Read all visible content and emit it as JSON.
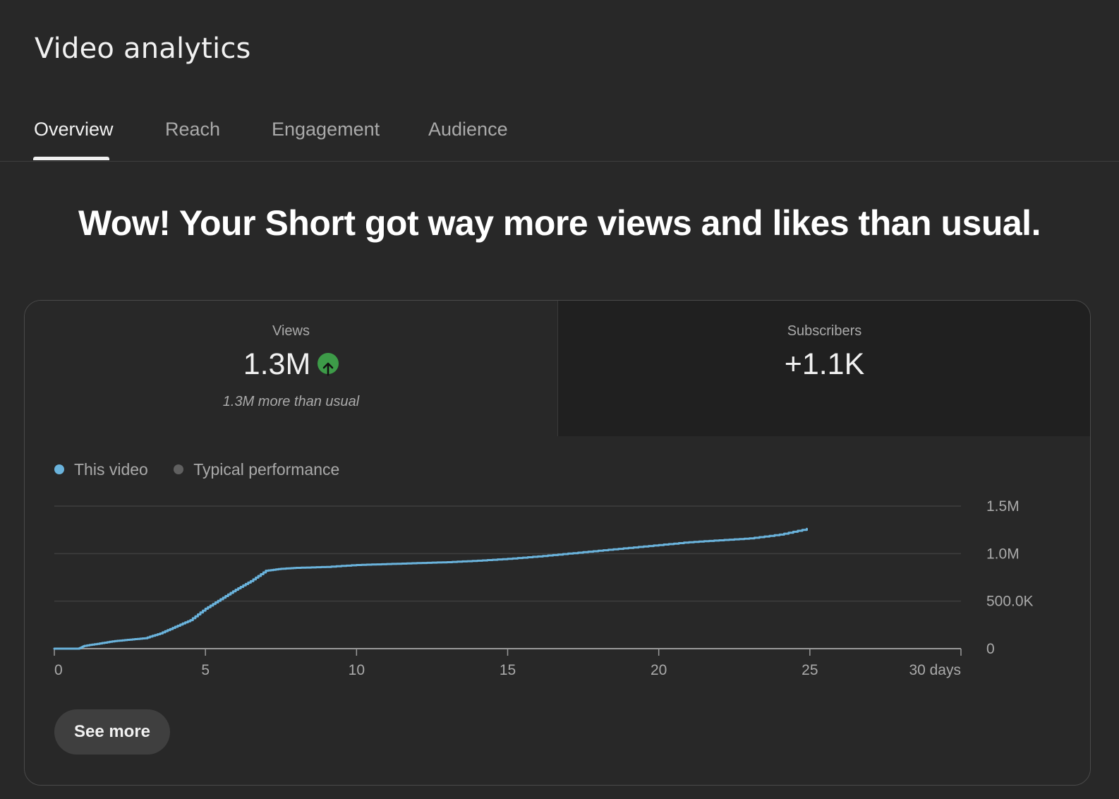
{
  "app": {
    "title": "Video analytics"
  },
  "tabs": [
    {
      "label": "Overview",
      "active": true
    },
    {
      "label": "Reach",
      "active": false
    },
    {
      "label": "Engagement",
      "active": false
    },
    {
      "label": "Audience",
      "active": false
    }
  ],
  "headline": "Wow! Your Short got way more views and likes than usual.",
  "metrics": {
    "views": {
      "label": "Views",
      "value": "1.3M",
      "trend_icon": "arrow-up-icon",
      "comparison": "1.3M more than usual"
    },
    "subscribers": {
      "label": "Subscribers",
      "value": "+1.1K"
    }
  },
  "legend": {
    "this_video": "This video",
    "typical": "Typical performance"
  },
  "colors": {
    "this_video": "#6ab3dc",
    "typical": "#606060",
    "trend_up": "#3d9b48"
  },
  "see_more_label": "See more",
  "chart_data": {
    "type": "line",
    "x_label_unit": "days",
    "xlim": [
      0,
      30
    ],
    "ylim": [
      0,
      1500000
    ],
    "x_ticks": [
      {
        "value": 0,
        "label": "0"
      },
      {
        "value": 5,
        "label": "5"
      },
      {
        "value": 10,
        "label": "10"
      },
      {
        "value": 15,
        "label": "15"
      },
      {
        "value": 20,
        "label": "20"
      },
      {
        "value": 25,
        "label": "25"
      },
      {
        "value": 30,
        "label": "30 days"
      }
    ],
    "y_ticks": [
      {
        "value": 1500000,
        "label": "1.5M"
      },
      {
        "value": 1000000,
        "label": "1.0M"
      },
      {
        "value": 500000,
        "label": "500.0K"
      },
      {
        "value": 0,
        "label": "0"
      }
    ],
    "grid": true,
    "series": [
      {
        "name": "This video",
        "x": [
          0,
          0.8,
          1,
          1.5,
          2,
          2.5,
          3,
          3.5,
          4,
          4.5,
          5,
          5.5,
          6,
          6.5,
          7,
          7.5,
          8,
          9,
          10,
          11,
          12,
          13,
          14,
          15,
          16,
          17,
          18,
          19,
          20,
          21,
          22,
          23,
          24,
          24.9
        ],
        "y": [
          0,
          0,
          30000,
          55000,
          80000,
          95000,
          110000,
          160000,
          230000,
          300000,
          420000,
          520000,
          620000,
          710000,
          820000,
          840000,
          850000,
          860000,
          880000,
          890000,
          900000,
          910000,
          925000,
          945000,
          970000,
          1000000,
          1030000,
          1060000,
          1090000,
          1120000,
          1140000,
          1160000,
          1200000,
          1260000
        ]
      }
    ]
  }
}
